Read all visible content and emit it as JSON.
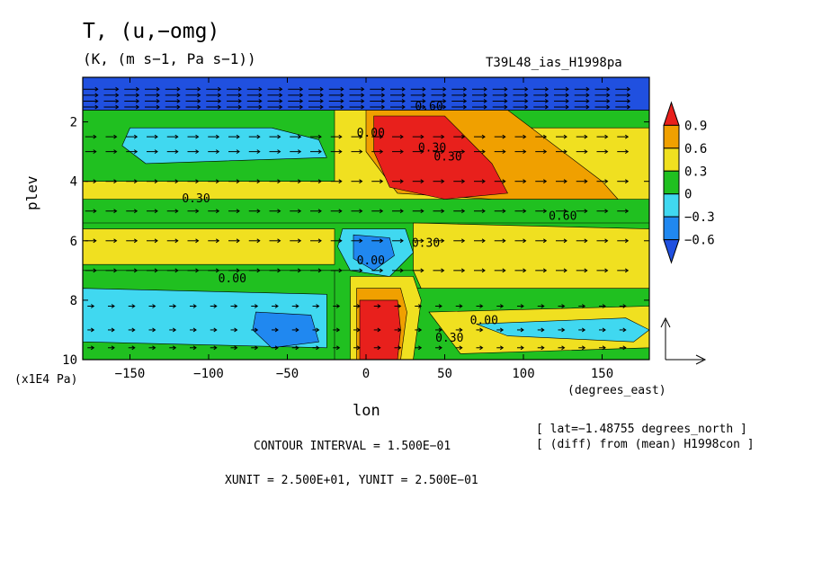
{
  "header": {
    "title": "T, (u,−omg)",
    "units": "(K, (m s−1, Pa s−1))",
    "run_name": "T39L48_ias_H1998pa"
  },
  "axes": {
    "ylabel": "plev",
    "yunit": "(x1E4 Pa)",
    "xlabel": "lon",
    "xunit": "(degrees_east)"
  },
  "footer": {
    "lat": "[ lat=−1.48755 degrees_north ]",
    "diff": "[ (diff) from (mean) H1998con ]",
    "contour_interval": "CONTOUR INTERVAL = 1.500E−01",
    "vector_units": "XUNIT = 2.500E+01, YUNIT = 2.500E−01"
  },
  "chart_data": {
    "type": "heatmap",
    "title": "T, (u,−omg)",
    "xlabel": "lon",
    "ylabel": "plev",
    "xlim": [
      -180,
      180
    ],
    "ylim": [
      10,
      0.5
    ],
    "xticks": [
      -150,
      -100,
      -50,
      0,
      50,
      100,
      150
    ],
    "yticks": [
      2,
      4,
      6,
      8,
      10
    ],
    "contour_interval": 0.15,
    "colorbar": {
      "levels": [
        "0.9",
        "0.6",
        "0.3",
        "0",
        "−0.3",
        "−0.6"
      ],
      "colors": [
        "#e8201c",
        "#f0a000",
        "#f0e020",
        "#20c020",
        "#40d8f0",
        "#2088f0",
        "#2050e0"
      ]
    },
    "contour_labels": [
      {
        "lon": 3,
        "plev": 2.5,
        "text": "0.00"
      },
      {
        "lon": 42,
        "plev": 3.0,
        "text": "0.30"
      },
      {
        "lon": 52,
        "plev": 3.3,
        "text": "0.30"
      },
      {
        "lon": 40,
        "plev": 1.6,
        "text": "0.60"
      },
      {
        "lon": -108,
        "plev": 4.7,
        "text": "0.30"
      },
      {
        "lon": 125,
        "plev": 5.3,
        "text": "0.60"
      },
      {
        "lon": 38,
        "plev": 6.2,
        "text": "0.30"
      },
      {
        "lon": 3,
        "plev": 6.8,
        "text": "0.00"
      },
      {
        "lon": -85,
        "plev": 7.4,
        "text": "0.00"
      },
      {
        "lon": 75,
        "plev": 8.8,
        "text": "0.00"
      },
      {
        "lon": 53,
        "plev": 9.4,
        "text": "0.30"
      }
    ],
    "regions": [
      {
        "value": "0.45",
        "color": "#f0e020",
        "points": [
          [
            -180,
            1.6
          ],
          [
            180,
            1.6
          ],
          [
            180,
            4.6
          ],
          [
            -180,
            4.6
          ]
        ]
      },
      {
        "value": "0.0",
        "color": "#20c020",
        "points": [
          [
            -180,
            1.6
          ],
          [
            -20,
            1.6
          ],
          [
            -20,
            4.0
          ],
          [
            -180,
            4.0
          ]
        ]
      },
      {
        "value": "0.0",
        "color": "#20c020",
        "points": [
          [
            20,
            1.6
          ],
          [
            180,
            1.6
          ],
          [
            180,
            2.2
          ],
          [
            20,
            2.2
          ]
        ]
      },
      {
        "value": "0.0",
        "color": "#20c020",
        "points": [
          [
            -180,
            5.4
          ],
          [
            180,
            5.4
          ],
          [
            180,
            7.0
          ],
          [
            -180,
            7.0
          ]
        ]
      },
      {
        "value": "0.3",
        "color": "#f0e020",
        "points": [
          [
            -180,
            5.6
          ],
          [
            -20,
            5.6
          ],
          [
            -20,
            6.8
          ],
          [
            -180,
            6.8
          ]
        ]
      },
      {
        "value": "0.3",
        "color": "#f0e020",
        "points": [
          [
            30,
            5.4
          ],
          [
            180,
            5.6
          ],
          [
            180,
            7.6
          ],
          [
            40,
            8.2
          ],
          [
            30,
            7.0
          ]
        ]
      },
      {
        "value": "0.0",
        "color": "#20c020",
        "points": [
          [
            -180,
            7.0
          ],
          [
            -20,
            7.0
          ],
          [
            -20,
            10
          ],
          [
            -180,
            10
          ]
        ]
      },
      {
        "value": "0.0",
        "color": "#20c020",
        "points": [
          [
            30,
            7.6
          ],
          [
            180,
            7.6
          ],
          [
            180,
            10
          ],
          [
            30,
            10
          ]
        ]
      },
      {
        "value": "-0.3",
        "color": "#40d8f0",
        "points": [
          [
            -180,
            7.6
          ],
          [
            -25,
            7.8
          ],
          [
            -25,
            9.6
          ],
          [
            -180,
            9.4
          ]
        ]
      },
      {
        "value": "0.3",
        "color": "#f0e020",
        "points": [
          [
            40,
            8.4
          ],
          [
            180,
            8.2
          ],
          [
            180,
            9.6
          ],
          [
            60,
            9.8
          ]
        ]
      },
      {
        "value": "-0.3",
        "color": "#40d8f0",
        "points": [
          [
            70,
            8.8
          ],
          [
            165,
            8.6
          ],
          [
            180,
            9.0
          ],
          [
            170,
            9.4
          ],
          [
            90,
            9.2
          ]
        ]
      },
      {
        "value": "-0.3",
        "color": "#40d8f0",
        "points": [
          [
            -150,
            2.2
          ],
          [
            -60,
            2.2
          ],
          [
            -30,
            2.6
          ],
          [
            -25,
            3.2
          ],
          [
            -140,
            3.4
          ],
          [
            -155,
            2.8
          ]
        ]
      },
      {
        "value": "-0.3",
        "color": "#40d8f0",
        "points": [
          [
            -15,
            5.6
          ],
          [
            25,
            5.6
          ],
          [
            30,
            6.4
          ],
          [
            15,
            7.2
          ],
          [
            -10,
            7.0
          ],
          [
            -18,
            6.2
          ]
        ]
      },
      {
        "value": "-0.6",
        "color": "#2088f0",
        "points": [
          [
            -8,
            5.8
          ],
          [
            15,
            5.9
          ],
          [
            18,
            6.5
          ],
          [
            5,
            7.0
          ],
          [
            -8,
            6.6
          ]
        ]
      },
      {
        "value": "-0.6",
        "color": "#2088f0",
        "points": [
          [
            -70,
            8.4
          ],
          [
            -35,
            8.5
          ],
          [
            -30,
            9.4
          ],
          [
            -60,
            9.6
          ],
          [
            -72,
            9.0
          ]
        ]
      },
      {
        "value": "0.6",
        "color": "#f0a000",
        "points": [
          [
            0,
            1.6
          ],
          [
            90,
            1.6
          ],
          [
            150,
            4.0
          ],
          [
            160,
            4.6
          ],
          [
            80,
            4.6
          ],
          [
            20,
            4.4
          ],
          [
            0,
            3.0
          ]
        ]
      },
      {
        "value": "0.9",
        "color": "#e8201c",
        "points": [
          [
            5,
            1.8
          ],
          [
            50,
            1.8
          ],
          [
            80,
            3.4
          ],
          [
            90,
            4.4
          ],
          [
            50,
            4.6
          ],
          [
            15,
            4.2
          ],
          [
            5,
            3.0
          ]
        ]
      },
      {
        "value": "0.3",
        "color": "#f0e020",
        "points": [
          [
            -10,
            7.2
          ],
          [
            30,
            7.2
          ],
          [
            35,
            8.0
          ],
          [
            30,
            10
          ],
          [
            -10,
            10
          ]
        ]
      },
      {
        "value": "0.6",
        "color": "#f0a000",
        "points": [
          [
            -6,
            7.6
          ],
          [
            22,
            7.6
          ],
          [
            26,
            8.4
          ],
          [
            22,
            10
          ],
          [
            -6,
            10
          ]
        ]
      },
      {
        "value": "0.9",
        "color": "#e8201c",
        "points": [
          [
            -4,
            8.0
          ],
          [
            20,
            8.0
          ],
          [
            22,
            9.0
          ],
          [
            20,
            10
          ],
          [
            -4,
            10
          ]
        ]
      },
      {
        "value": "-0.6",
        "color": "#2050e0",
        "points": [
          [
            -180,
            0.5
          ],
          [
            180,
            0.5
          ],
          [
            180,
            1.6
          ],
          [
            -180,
            1.6
          ]
        ]
      }
    ]
  }
}
